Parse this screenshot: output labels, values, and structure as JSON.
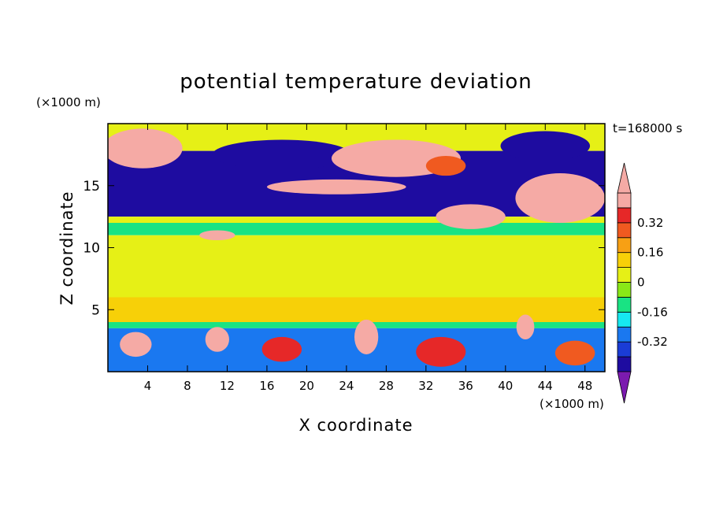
{
  "chart_data": {
    "type": "heatmap",
    "title": "potential temperature deviation",
    "xlabel": "X coordinate",
    "ylabel": "Z coordinate",
    "x_unit": "(×1000 m)",
    "y_unit": "(×1000 m)",
    "time_label": "t=168000 s",
    "xlim": [
      0,
      50
    ],
    "ylim": [
      0,
      20
    ],
    "x_ticks": [
      4,
      8,
      12,
      16,
      20,
      24,
      28,
      32,
      36,
      40,
      44,
      48
    ],
    "y_ticks": [
      5,
      10,
      15
    ],
    "colorbar": {
      "levels": [
        -0.48,
        -0.4,
        -0.32,
        -0.24,
        -0.16,
        -0.08,
        0,
        0.08,
        0.16,
        0.24,
        0.32,
        0.4,
        0.48
      ],
      "colors": [
        "#7b1aaf",
        "#1e0ca0",
        "#1a3cd6",
        "#1a78f0",
        "#16e8f0",
        "#19e383",
        "#8ae817",
        "#e6f016",
        "#f7d008",
        "#f7a014",
        "#f05a20",
        "#e62828",
        "#f5aaa5",
        "#f5aaa5"
      ],
      "tick_labels": [
        "0.32",
        "0.16",
        "0",
        "-0.16",
        "-0.32"
      ],
      "tick_values": [
        0.32,
        0.16,
        0,
        -0.16,
        -0.32
      ],
      "extend": "both"
    },
    "bands": [
      {
        "z": [
          17.8,
          20
        ],
        "value": 0.05
      },
      {
        "z": [
          16.0,
          17.8
        ],
        "value": -0.45
      },
      {
        "z": [
          12.5,
          16.0
        ],
        "value": -0.45
      },
      {
        "z": [
          12.0,
          12.5
        ],
        "value": 0.02
      },
      {
        "z": [
          11.0,
          12.0
        ],
        "value": -0.1
      },
      {
        "z": [
          6.0,
          11.0
        ],
        "value": 0.05
      },
      {
        "z": [
          4.0,
          6.0
        ],
        "value": 0.08
      },
      {
        "z": [
          3.5,
          4.0
        ],
        "value": -0.1
      },
      {
        "z": [
          0,
          3.5
        ],
        "value": -0.3
      }
    ],
    "blobs": [
      {
        "x": 3.5,
        "z": 18.0,
        "rx": 4.0,
        "rz": 1.6,
        "value": 0.45
      },
      {
        "x": 17.5,
        "z": 17.5,
        "rx": 7.0,
        "rz": 1.2,
        "value": -0.45
      },
      {
        "x": 29.0,
        "z": 17.2,
        "rx": 6.5,
        "rz": 1.5,
        "value": 0.45
      },
      {
        "x": 34.0,
        "z": 16.6,
        "rx": 2.0,
        "rz": 0.8,
        "value": 0.28
      },
      {
        "x": 44.0,
        "z": 18.2,
        "rx": 4.5,
        "rz": 1.2,
        "value": -0.45
      },
      {
        "x": 45.5,
        "z": 14.0,
        "rx": 4.5,
        "rz": 2.0,
        "value": 0.45
      },
      {
        "x": 36.5,
        "z": 12.5,
        "rx": 3.5,
        "rz": 1.0,
        "value": 0.45
      },
      {
        "x": 11.0,
        "z": 11.0,
        "rx": 1.8,
        "rz": 0.4,
        "value": 0.45
      },
      {
        "x": 23.0,
        "z": 14.9,
        "rx": 7.0,
        "rz": 0.6,
        "value": 0.4
      },
      {
        "x": 38.0,
        "z": 9.0,
        "rx": 7.0,
        "rz": 2.0,
        "value": 0.05
      },
      {
        "x": 2.8,
        "z": 2.2,
        "rx": 1.6,
        "rz": 1.0,
        "value": 0.4
      },
      {
        "x": 11.0,
        "z": 2.6,
        "rx": 1.2,
        "rz": 1.0,
        "value": 0.45
      },
      {
        "x": 17.5,
        "z": 1.8,
        "rx": 2.0,
        "rz": 1.0,
        "value": 0.32
      },
      {
        "x": 26.0,
        "z": 2.8,
        "rx": 1.2,
        "rz": 1.4,
        "value": 0.45
      },
      {
        "x": 33.5,
        "z": 1.6,
        "rx": 2.5,
        "rz": 1.2,
        "value": 0.32
      },
      {
        "x": 42.0,
        "z": 3.6,
        "rx": 0.9,
        "rz": 1.0,
        "value": 0.45
      },
      {
        "x": 47.0,
        "z": 1.5,
        "rx": 2.0,
        "rz": 1.0,
        "value": 0.3
      }
    ]
  }
}
